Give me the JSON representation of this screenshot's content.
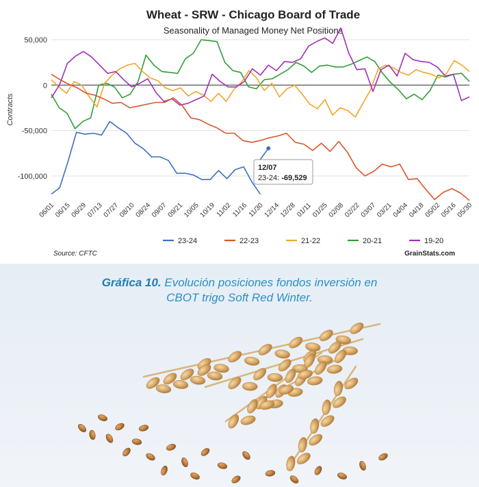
{
  "chart_data": {
    "type": "line",
    "title": "Wheat - SRW - Chicago Board of Trade",
    "subtitle": "Seasonality of Managed Money Net Positions",
    "ylabel": "Contracts",
    "xlabel": "",
    "ylim": [
      -125000,
      50000
    ],
    "yticks": [
      50000,
      0,
      -50000,
      -100000
    ],
    "ytick_labels": [
      "50,000",
      "0",
      "-50,000",
      "-100,000"
    ],
    "xticks": [
      "06/01",
      "06/15",
      "06/29",
      "07/13",
      "07/27",
      "08/10",
      "08/24",
      "09/07",
      "09/21",
      "10/05",
      "10/19",
      "11/02",
      "11/16",
      "11/30",
      "12/14",
      "12/28",
      "01/11",
      "01/25",
      "02/08",
      "02/22",
      "03/07",
      "03/21",
      "04/04",
      "04/18",
      "05/02",
      "05/16",
      "05/30"
    ],
    "legend_position": "bottom",
    "grid": true,
    "series": [
      {
        "name": "23-24",
        "color": "#3d6fc0",
        "values": [
          -120000,
          -113000,
          -84000,
          -52000,
          -54000,
          -53000,
          -55000,
          -40000,
          -47000,
          -53000,
          -64000,
          -70000,
          -79000,
          -79000,
          -83000,
          -97000,
          -97000,
          -99000,
          -104000,
          -104000,
          -94000,
          -103000,
          -93000,
          -90000,
          -107000,
          -120000
        ]
      },
      {
        "name": "22-23",
        "color": "#d9552b",
        "values": [
          12000,
          6000,
          1000,
          -3000,
          -9000,
          -11000,
          -15000,
          -20000,
          -19000,
          -25000,
          -23000,
          -21000,
          -19000,
          -19000,
          -14000,
          -22000,
          -36000,
          -38000,
          -43000,
          -47000,
          -53000,
          -53000,
          -61000,
          -63000,
          -61000,
          -58000,
          -56000,
          -53000,
          -63000,
          -65000,
          -72000,
          -64000,
          -73000,
          -62000,
          -74000,
          -91000,
          -100000,
          -95000,
          -87000,
          -90000,
          -87000,
          -104000,
          -103000,
          -115000,
          -126000,
          -118000,
          -114000,
          -119000,
          -127000
        ]
      },
      {
        "name": "21-22",
        "color": "#f0a52b",
        "values": [
          6000,
          -2000,
          -9000,
          4000,
          0,
          -13000,
          -24000,
          2000,
          11000,
          18000,
          22000,
          24000,
          15000,
          8000,
          5000,
          -3000,
          -6000,
          -3000,
          -12000,
          -7000,
          -11000,
          -18000,
          -9000,
          -18000,
          -5000,
          3000,
          16000,
          8000,
          -6000,
          2000,
          -13000,
          -4000,
          0,
          -10000,
          -21000,
          -26000,
          -16000,
          -33000,
          -25000,
          -28000,
          -35000,
          -20000,
          -5000,
          18000,
          22000,
          19000,
          14000,
          11000,
          17000,
          14000,
          12000,
          8000,
          13000,
          27000,
          22000,
          15000
        ]
      },
      {
        "name": "20-21",
        "color": "#2f9e38",
        "values": [
          -10000,
          -25000,
          -31000,
          -48000,
          -40000,
          -36000,
          0,
          2000,
          -2000,
          -14000,
          -10000,
          4000,
          33000,
          22000,
          15000,
          14000,
          13000,
          29000,
          35000,
          50000,
          49000,
          48000,
          25000,
          16000,
          14000,
          -2000,
          -4000,
          6000,
          7000,
          12000,
          17000,
          25000,
          21000,
          14000,
          21000,
          22000,
          20000,
          20000,
          23000,
          27000,
          31000,
          26000,
          13000,
          3000,
          -5000,
          -15000,
          -10000,
          -16000,
          -6000,
          11000,
          9000,
          12000,
          13000,
          4000
        ]
      },
      {
        "name": "19-20",
        "color": "#a12fb5",
        "values": [
          -14000,
          0,
          24000,
          32000,
          37000,
          31000,
          22000,
          13000,
          15000,
          6000,
          -2000,
          2000,
          7000,
          -8000,
          -18000,
          -15000,
          -22000,
          -20000,
          -16000,
          -12000,
          12000,
          4000,
          -2000,
          -2000,
          4000,
          18000,
          11000,
          22000,
          16000,
          26000,
          25000,
          29000,
          43000,
          48000,
          52000,
          46000,
          63000,
          35000,
          17000,
          18000,
          -7000,
          17000,
          22000,
          10000,
          35000,
          28000,
          26000,
          25000,
          20000,
          10000,
          12000,
          -17000,
          -13000
        ]
      }
    ],
    "annotations": [
      {
        "date": "12/07",
        "series": "23-24",
        "label": "23-24:",
        "value_text": "-69,529",
        "value": -69529
      }
    ]
  },
  "source": "Source: CFTC",
  "brand": "GrainStats.com",
  "caption": {
    "label": "Gráfica 10.",
    "line1": "Evolución posiciones fondos inversión en",
    "line2": "CBOT trigo Soft Red Winter."
  }
}
